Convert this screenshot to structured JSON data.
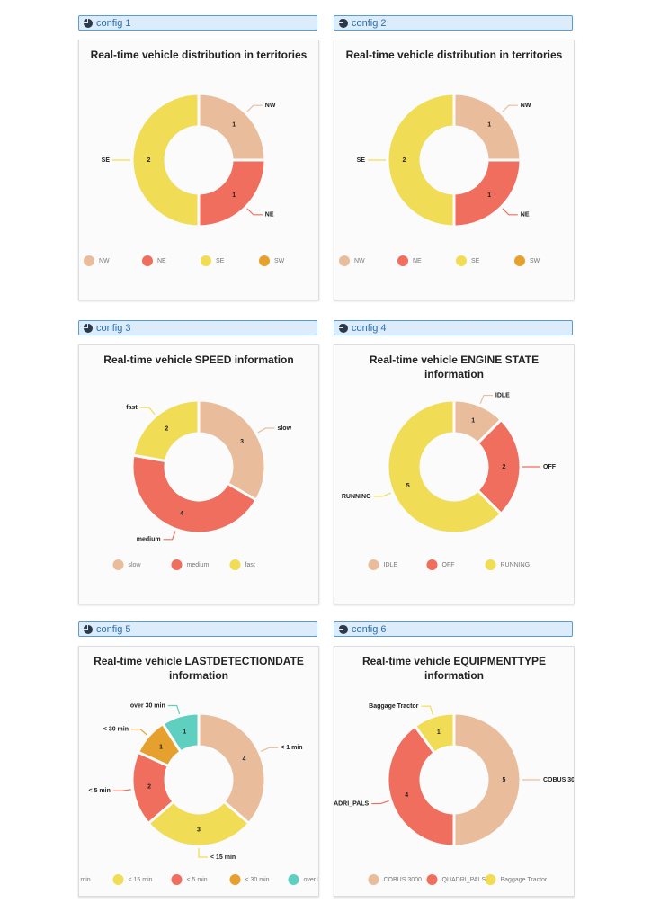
{
  "panels": [
    {
      "label": "config 1"
    },
    {
      "label": "config 2"
    },
    {
      "label": "config 3"
    },
    {
      "label": "config 4"
    },
    {
      "label": "config 5"
    },
    {
      "label": "config 6"
    }
  ],
  "chart_data": [
    {
      "type": "pie",
      "title": "Real-time vehicle distribution in territories",
      "categories": [
        "NW",
        "NE",
        "SE",
        "SW"
      ],
      "values": [
        1,
        1,
        2,
        0
      ],
      "colors": [
        "#e9bd9c",
        "#ef6e5e",
        "#f0dc55",
        "#e6a02e"
      ]
    },
    {
      "type": "pie",
      "title": "Real-time vehicle distribution in territories",
      "categories": [
        "NW",
        "NE",
        "SE",
        "SW"
      ],
      "values": [
        1,
        1,
        2,
        0
      ],
      "colors": [
        "#e9bd9c",
        "#ef6e5e",
        "#f0dc55",
        "#e6a02e"
      ]
    },
    {
      "type": "pie",
      "title": "Real-time vehicle SPEED information",
      "categories": [
        "slow",
        "medium",
        "fast"
      ],
      "values": [
        3,
        4,
        2
      ],
      "colors": [
        "#e9bd9c",
        "#ef6e5e",
        "#f0dc55"
      ]
    },
    {
      "type": "pie",
      "title": "Real-time vehicle ENGINE STATE information",
      "categories": [
        "IDLE",
        "OFF",
        "RUNNING"
      ],
      "values": [
        1,
        2,
        5
      ],
      "colors": [
        "#e9bd9c",
        "#ef6e5e",
        "#f0dc55"
      ]
    },
    {
      "type": "pie",
      "title": "Real-time vehicle LASTDETECTIONDATE information",
      "categories": [
        "< 1 min",
        "< 15 min",
        "< 5 min",
        "< 30 min",
        "over 30 min"
      ],
      "values": [
        4,
        3,
        2,
        1,
        1
      ],
      "colors": [
        "#e9bd9c",
        "#f0dc55",
        "#ef6e5e",
        "#e6a02e",
        "#5fcfbf"
      ]
    },
    {
      "type": "pie",
      "title": "Real-time vehicle EQUIPMENTTYPE information",
      "categories": [
        "COBUS 3000",
        "QUADRI_PALS",
        "Baggage Tractor"
      ],
      "values": [
        5,
        4,
        1
      ],
      "colors": [
        "#e9bd9c",
        "#ef6e5e",
        "#f0dc55"
      ]
    }
  ]
}
